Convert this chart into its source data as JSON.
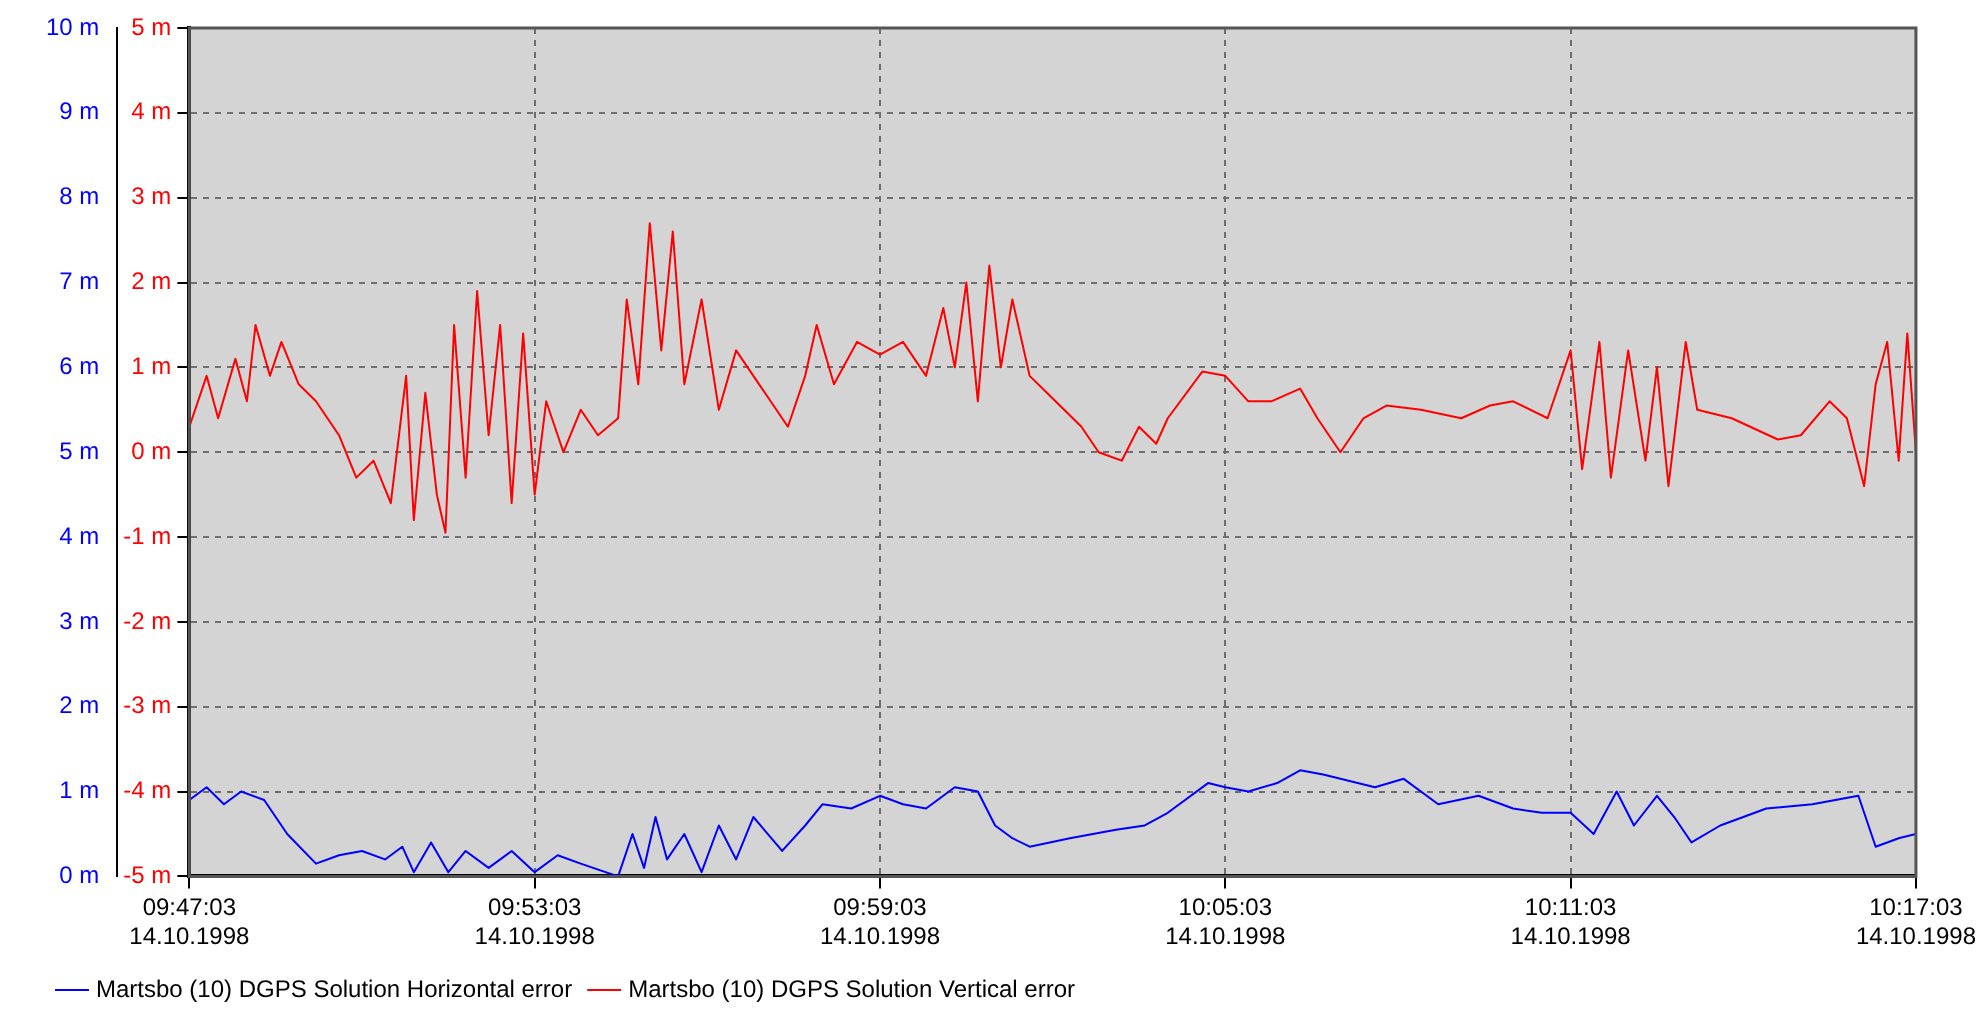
{
  "chart_data": {
    "type": "line",
    "legend": "bottom",
    "grid": true,
    "marker": "none",
    "line_style": "solid",
    "xlim": [
      "1998-10-14T09:47:03",
      "1998-10-14T10:17:03"
    ],
    "xticks": [
      {
        "value": "1998-10-14T09:47:03",
        "label": "09:47:03\n14.10.1998"
      },
      {
        "value": "1998-10-14T09:53:03",
        "label": "09:53:03\n14.10.1998"
      },
      {
        "value": "1998-10-14T09:59:03",
        "label": "09:59:03\n14.10.1998"
      },
      {
        "value": "1998-10-14T10:05:03",
        "label": "10:05:03\n14.10.1998"
      },
      {
        "value": "1998-10-14T10:11:03",
        "label": "10:11:03\n14.10.1998"
      },
      {
        "value": "1998-10-14T10:17:03",
        "label": "10:17:03\n14.10.1998"
      }
    ],
    "ylim": [
      0,
      10
    ],
    "yticks": [
      {
        "value": 0,
        "label": "0 m"
      },
      {
        "value": 1,
        "label": "1 m"
      },
      {
        "value": 2,
        "label": "2 m"
      },
      {
        "value": 3,
        "label": "3 m"
      },
      {
        "value": 4,
        "label": "4 m"
      },
      {
        "value": 5,
        "label": "5 m"
      },
      {
        "value": 6,
        "label": "6 m"
      },
      {
        "value": 7,
        "label": "7 m"
      },
      {
        "value": 8,
        "label": "8 m"
      },
      {
        "value": 9,
        "label": "9 m"
      },
      {
        "value": 10,
        "label": "10 m"
      }
    ],
    "y2lim": [
      -5,
      5
    ],
    "y2ticks": [
      {
        "value": -5,
        "label": "-5 m"
      },
      {
        "value": -4,
        "label": "-4 m"
      },
      {
        "value": -3,
        "label": "-3 m"
      },
      {
        "value": -2,
        "label": "-2 m"
      },
      {
        "value": -1,
        "label": "-1 m"
      },
      {
        "value": 0,
        "label": "0 m"
      },
      {
        "value": 1,
        "label": "1 m"
      },
      {
        "value": 2,
        "label": "2 m"
      },
      {
        "value": 3,
        "label": "3 m"
      },
      {
        "value": 4,
        "label": "4 m"
      },
      {
        "value": 5,
        "label": "5 m"
      }
    ],
    "series": [
      {
        "name": "Martsbo (10) DGPS Solution Horizontal error",
        "color": "#0000ff",
        "x": [
          "1998-10-14T09:47:03",
          "1998-10-14T09:47:21",
          "1998-10-14T09:47:39",
          "1998-10-14T09:47:57",
          "1998-10-14T09:48:21",
          "1998-10-14T09:48:45",
          "1998-10-14T09:49:15",
          "1998-10-14T09:49:39",
          "1998-10-14T09:50:03",
          "1998-10-14T09:50:27",
          "1998-10-14T09:50:45",
          "1998-10-14T09:50:57",
          "1998-10-14T09:51:15",
          "1998-10-14T09:51:33",
          "1998-10-14T09:51:51",
          "1998-10-14T09:52:15",
          "1998-10-14T09:52:39",
          "1998-10-14T09:53:03",
          "1998-10-14T09:53:27",
          "1998-10-14T09:53:51",
          "1998-10-14T09:54:30",
          "1998-10-14T09:54:45",
          "1998-10-14T09:54:57",
          "1998-10-14T09:55:09",
          "1998-10-14T09:55:21",
          "1998-10-14T09:55:39",
          "1998-10-14T09:55:57",
          "1998-10-14T09:56:15",
          "1998-10-14T09:56:33",
          "1998-10-14T09:56:51",
          "1998-10-14T09:57:21",
          "1998-10-14T09:57:45",
          "1998-10-14T09:58:03",
          "1998-10-14T09:58:33",
          "1998-10-14T09:59:03",
          "1998-10-14T09:59:27",
          "1998-10-14T09:59:51",
          "1998-10-14T10:00:21",
          "1998-10-14T10:00:45",
          "1998-10-14T10:01:03",
          "1998-10-14T10:01:21",
          "1998-10-14T10:01:39",
          "1998-10-14T10:02:21",
          "1998-10-14T10:03:09",
          "1998-10-14T10:03:39",
          "1998-10-14T10:04:03",
          "1998-10-14T10:04:45",
          "1998-10-14T10:05:03",
          "1998-10-14T10:05:27",
          "1998-10-14T10:05:57",
          "1998-10-14T10:06:21",
          "1998-10-14T10:06:45",
          "1998-10-14T10:07:03",
          "1998-10-14T10:07:39",
          "1998-10-14T10:08:09",
          "1998-10-14T10:08:45",
          "1998-10-14T10:09:27",
          "1998-10-14T10:10:03",
          "1998-10-14T10:10:33",
          "1998-10-14T10:11:03",
          "1998-10-14T10:11:27",
          "1998-10-14T10:11:51",
          "1998-10-14T10:12:09",
          "1998-10-14T10:12:33",
          "1998-10-14T10:12:51",
          "1998-10-14T10:13:09",
          "1998-10-14T10:13:39",
          "1998-10-14T10:14:27",
          "1998-10-14T10:15:15",
          "1998-10-14T10:16:03",
          "1998-10-14T10:16:21",
          "1998-10-14T10:16:45",
          "1998-10-14T10:17:03"
        ],
        "values": [
          0.9,
          1.05,
          0.85,
          1.0,
          0.9,
          0.5,
          0.15,
          0.25,
          0.3,
          0.2,
          0.35,
          0.05,
          0.4,
          0.05,
          0.3,
          0.1,
          0.3,
          0.05,
          0.25,
          0.15,
          0.0,
          0.5,
          0.1,
          0.7,
          0.2,
          0.5,
          0.05,
          0.6,
          0.2,
          0.7,
          0.3,
          0.6,
          0.85,
          0.8,
          0.95,
          0.85,
          0.8,
          1.05,
          1.0,
          0.6,
          0.45,
          0.35,
          0.45,
          0.55,
          0.6,
          0.75,
          1.1,
          1.05,
          1.0,
          1.1,
          1.25,
          1.2,
          1.15,
          1.05,
          1.15,
          0.85,
          0.95,
          0.8,
          0.75,
          0.75,
          0.5,
          1.0,
          0.6,
          0.95,
          0.7,
          0.4,
          0.6,
          0.8,
          0.85,
          0.95,
          0.35,
          0.45,
          0.5
        ]
      },
      {
        "name": "Martsbo (10) DGPS Solution Vertical error",
        "color": "#ff0000",
        "axis": "y2",
        "x": [
          "1998-10-14T09:47:03",
          "1998-10-14T09:47:21",
          "1998-10-14T09:47:33",
          "1998-10-14T09:47:51",
          "1998-10-14T09:48:03",
          "1998-10-14T09:48:12",
          "1998-10-14T09:48:27",
          "1998-10-14T09:48:39",
          "1998-10-14T09:48:57",
          "1998-10-14T09:49:15",
          "1998-10-14T09:49:39",
          "1998-10-14T09:49:57",
          "1998-10-14T09:50:15",
          "1998-10-14T09:50:33",
          "1998-10-14T09:50:49",
          "1998-10-14T09:50:57",
          "1998-10-14T09:51:09",
          "1998-10-14T09:51:21",
          "1998-10-14T09:51:30",
          "1998-10-14T09:51:39",
          "1998-10-14T09:51:51",
          "1998-10-14T09:52:03",
          "1998-10-14T09:52:15",
          "1998-10-14T09:52:27",
          "1998-10-14T09:52:39",
          "1998-10-14T09:52:51",
          "1998-10-14T09:53:03",
          "1998-10-14T09:53:15",
          "1998-10-14T09:53:33",
          "1998-10-14T09:53:51",
          "1998-10-14T09:54:09",
          "1998-10-14T09:54:30",
          "1998-10-14T09:54:39",
          "1998-10-14T09:54:51",
          "1998-10-14T09:55:03",
          "1998-10-14T09:55:15",
          "1998-10-14T09:55:27",
          "1998-10-14T09:55:39",
          "1998-10-14T09:55:57",
          "1998-10-14T09:56:15",
          "1998-10-14T09:56:33",
          "1998-10-14T09:56:57",
          "1998-10-14T09:57:27",
          "1998-10-14T09:57:45",
          "1998-10-14T09:57:57",
          "1998-10-14T09:58:15",
          "1998-10-14T09:58:39",
          "1998-10-14T09:59:03",
          "1998-10-14T09:59:27",
          "1998-10-14T09:59:51",
          "1998-10-14T10:00:09",
          "1998-10-14T10:00:21",
          "1998-10-14T10:00:33",
          "1998-10-14T10:00:45",
          "1998-10-14T10:00:57",
          "1998-10-14T10:01:09",
          "1998-10-14T10:01:21",
          "1998-10-14T10:01:39",
          "1998-10-14T10:01:57",
          "1998-10-14T10:02:15",
          "1998-10-14T10:02:33",
          "1998-10-14T10:02:51",
          "1998-10-14T10:03:15",
          "1998-10-14T10:03:33",
          "1998-10-14T10:03:51",
          "1998-10-14T10:04:03",
          "1998-10-14T10:04:39",
          "1998-10-14T10:05:03",
          "1998-10-14T10:05:27",
          "1998-10-14T10:05:51",
          "1998-10-14T10:06:21",
          "1998-10-14T10:06:39",
          "1998-10-14T10:07:03",
          "1998-10-14T10:07:27",
          "1998-10-14T10:07:51",
          "1998-10-14T10:08:27",
          "1998-10-14T10:09:09",
          "1998-10-14T10:09:39",
          "1998-10-14T10:10:03",
          "1998-10-14T10:10:39",
          "1998-10-14T10:11:03",
          "1998-10-14T10:11:15",
          "1998-10-14T10:11:33",
          "1998-10-14T10:11:45",
          "1998-10-14T10:12:03",
          "1998-10-14T10:12:21",
          "1998-10-14T10:12:33",
          "1998-10-14T10:12:45",
          "1998-10-14T10:13:03",
          "1998-10-14T10:13:15",
          "1998-10-14T10:13:51",
          "1998-10-14T10:14:39",
          "1998-10-14T10:15:03",
          "1998-10-14T10:15:33",
          "1998-10-14T10:15:51",
          "1998-10-14T10:16:09",
          "1998-10-14T10:16:21",
          "1998-10-14T10:16:33",
          "1998-10-14T10:16:45",
          "1998-10-14T10:16:54",
          "1998-10-14T10:17:03"
        ],
        "values": [
          0.3,
          0.9,
          0.4,
          1.1,
          0.6,
          1.5,
          0.9,
          1.3,
          0.8,
          0.6,
          0.2,
          -0.3,
          -0.1,
          -0.6,
          0.9,
          -0.8,
          0.7,
          -0.5,
          -0.95,
          1.5,
          -0.3,
          1.9,
          0.2,
          1.5,
          -0.6,
          1.4,
          -0.5,
          0.6,
          0.0,
          0.5,
          0.2,
          0.4,
          1.8,
          0.8,
          2.7,
          1.2,
          2.6,
          0.8,
          1.8,
          0.5,
          1.2,
          0.8,
          0.3,
          0.9,
          1.5,
          0.8,
          1.3,
          1.15,
          1.3,
          0.9,
          1.7,
          1.0,
          2.0,
          0.6,
          2.2,
          1.0,
          1.8,
          0.9,
          0.7,
          0.5,
          0.3,
          0.0,
          -0.1,
          0.3,
          0.1,
          0.4,
          0.95,
          0.9,
          0.6,
          0.6,
          0.75,
          0.4,
          0.0,
          0.4,
          0.55,
          0.5,
          0.4,
          0.55,
          0.6,
          0.4,
          1.2,
          -0.2,
          1.3,
          -0.3,
          1.2,
          -0.1,
          1.0,
          -0.4,
          1.3,
          0.5,
          0.4,
          0.15,
          0.2,
          0.6,
          0.4,
          -0.4,
          0.8,
          1.3,
          -0.1,
          1.4,
          0.0
        ]
      }
    ]
  }
}
